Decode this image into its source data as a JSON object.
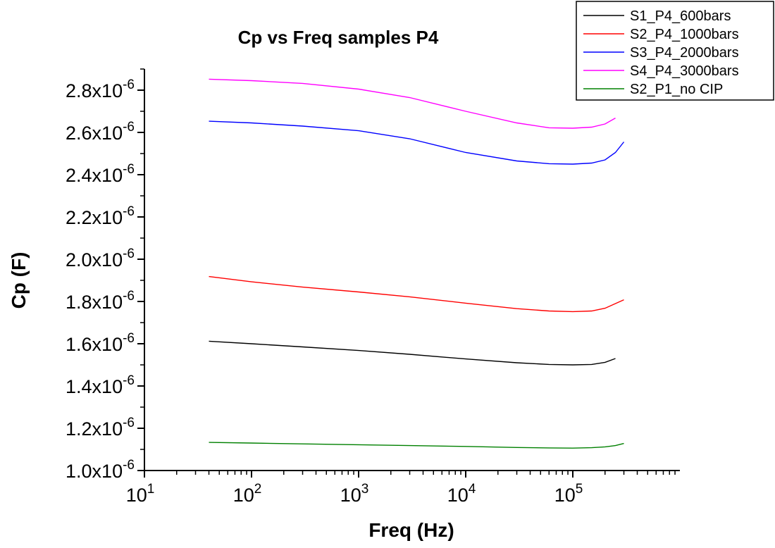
{
  "chart_data": {
    "type": "line",
    "title": "Cp vs Freq samples P4",
    "xlabel": "Freq (Hz)",
    "ylabel": "Cp (F)",
    "xscale": "log",
    "xlim": [
      10,
      1000000
    ],
    "ylim": [
      1e-06,
      2.9e-06
    ],
    "x_ticks": [
      {
        "base": "10",
        "exp": "1"
      },
      {
        "base": "10",
        "exp": "2"
      },
      {
        "base": "10",
        "exp": "3"
      },
      {
        "base": "10",
        "exp": "4"
      },
      {
        "base": "10",
        "exp": "5"
      }
    ],
    "y_ticks": [
      {
        "value": 1e-06,
        "mantissa": "1.0x10",
        "exp": "-6"
      },
      {
        "value": 1.2e-06,
        "mantissa": "1.2x10",
        "exp": "-6"
      },
      {
        "value": 1.4e-06,
        "mantissa": "1.4x10",
        "exp": "-6"
      },
      {
        "value": 1.6e-06,
        "mantissa": "1.6x10",
        "exp": "-6"
      },
      {
        "value": 1.8e-06,
        "mantissa": "1.8x10",
        "exp": "-6"
      },
      {
        "value": 2e-06,
        "mantissa": "2.0x10",
        "exp": "-6"
      },
      {
        "value": 2.2e-06,
        "mantissa": "2.2x10",
        "exp": "-6"
      },
      {
        "value": 2.4e-06,
        "mantissa": "2.4x10",
        "exp": "-6"
      },
      {
        "value": 2.6e-06,
        "mantissa": "2.6x10",
        "exp": "-6"
      },
      {
        "value": 2.8e-06,
        "mantissa": "2.8x10",
        "exp": "-6"
      }
    ],
    "legend_position": "top-right",
    "grid": false,
    "series": [
      {
        "name": "S1_P4_600bars",
        "color": "#000000",
        "x": [
          40,
          100,
          300,
          1000,
          3000,
          10000,
          30000,
          60000,
          100000,
          150000,
          200000,
          250000
        ],
        "y": [
          1.612e-06,
          1.6e-06,
          1.585e-06,
          1.568e-06,
          1.55e-06,
          1.528e-06,
          1.51e-06,
          1.502e-06,
          1.5e-06,
          1.502e-06,
          1.512e-06,
          1.53e-06
        ]
      },
      {
        "name": "S2_P4_1000bars",
        "color": "#ff0000",
        "x": [
          40,
          100,
          300,
          1000,
          3000,
          10000,
          30000,
          60000,
          100000,
          150000,
          200000,
          250000,
          300000
        ],
        "y": [
          1.918e-06,
          1.893e-06,
          1.868e-06,
          1.845e-06,
          1.822e-06,
          1.792e-06,
          1.766e-06,
          1.755e-06,
          1.752e-06,
          1.755e-06,
          1.768e-06,
          1.79e-06,
          1.808e-06
        ]
      },
      {
        "name": "S3_P4_2000bars",
        "color": "#0000ff",
        "x": [
          40,
          100,
          300,
          1000,
          3000,
          10000,
          30000,
          60000,
          100000,
          150000,
          200000,
          250000,
          300000
        ],
        "y": [
          2.653e-06,
          2.645e-06,
          2.63e-06,
          2.608e-06,
          2.57e-06,
          2.505e-06,
          2.465e-06,
          2.452e-06,
          2.45e-06,
          2.455e-06,
          2.47e-06,
          2.505e-06,
          2.555e-06
        ]
      },
      {
        "name": "S4_P4_3000bars",
        "color": "#ff00ff",
        "x": [
          40,
          100,
          300,
          1000,
          3000,
          10000,
          30000,
          60000,
          100000,
          150000,
          200000,
          250000
        ],
        "y": [
          2.852e-06,
          2.845e-06,
          2.832e-06,
          2.805e-06,
          2.765e-06,
          2.7e-06,
          2.645e-06,
          2.622e-06,
          2.62e-06,
          2.625e-06,
          2.64e-06,
          2.668e-06
        ]
      },
      {
        "name": "S2_P1_no CIP",
        "color": "#008000",
        "x": [
          40,
          100,
          300,
          1000,
          3000,
          10000,
          30000,
          60000,
          100000,
          150000,
          200000,
          250000,
          300000
        ],
        "y": [
          1.133e-06,
          1.13e-06,
          1.126e-06,
          1.122e-06,
          1.118e-06,
          1.114e-06,
          1.109e-06,
          1.107e-06,
          1.106e-06,
          1.108e-06,
          1.112e-06,
          1.118e-06,
          1.128e-06
        ]
      }
    ]
  }
}
